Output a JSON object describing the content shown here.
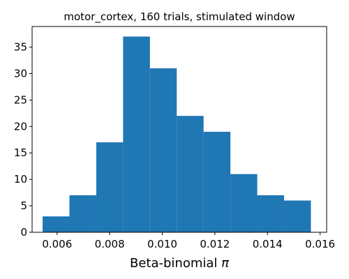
{
  "chart_data": {
    "type": "bar",
    "title": "motor_cortex, 160 trials, stimulated window",
    "xlabel_text": "Beta-binomial ",
    "xlabel_symbol": "π",
    "ylabel": "",
    "xlim": [
      0.00505,
      0.01625
    ],
    "ylim": [
      0,
      38.9
    ],
    "bin_edges": [
      0.00545,
      0.00647,
      0.00749,
      0.00851,
      0.00953,
      0.01055,
      0.01157,
      0.01259,
      0.01361,
      0.01463,
      0.01565
    ],
    "counts": [
      3,
      7,
      17,
      37,
      31,
      22,
      19,
      11,
      7,
      6
    ],
    "bar_color": "#1f77b4",
    "x_ticks": [
      0.006,
      0.008,
      0.01,
      0.012,
      0.014,
      0.016
    ],
    "x_tick_labels": [
      "0.006",
      "0.008",
      "0.010",
      "0.012",
      "0.014",
      "0.016"
    ],
    "y_ticks": [
      0,
      5,
      10,
      15,
      20,
      25,
      30,
      35
    ],
    "y_tick_labels": [
      "0",
      "5",
      "10",
      "15",
      "20",
      "25",
      "30",
      "35"
    ],
    "grid": false,
    "legend": "none"
  }
}
